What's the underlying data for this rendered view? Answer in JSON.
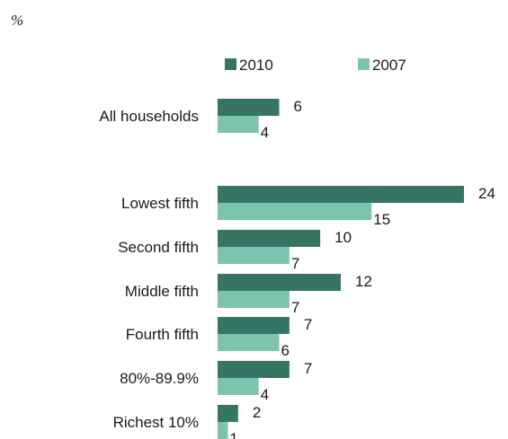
{
  "chart_data": {
    "type": "bar",
    "orientation": "horizontal",
    "unit": "%",
    "title": "",
    "xlabel": "",
    "ylabel": "",
    "xlim": [
      0,
      24
    ],
    "grid": false,
    "legend_position": "top",
    "categories": [
      "All households",
      "Lowest fifth",
      "Second fifth",
      "Middle fifth",
      "Fourth fifth",
      "80%-89.9%",
      "Richest 10%"
    ],
    "series": [
      {
        "name": "2010",
        "color": "#367563",
        "values": [
          6,
          24,
          10,
          12,
          7,
          7,
          2
        ]
      },
      {
        "name": "2007",
        "color": "#7cc4ae",
        "values": [
          4,
          15,
          7,
          7,
          6,
          4,
          1
        ]
      }
    ]
  }
}
